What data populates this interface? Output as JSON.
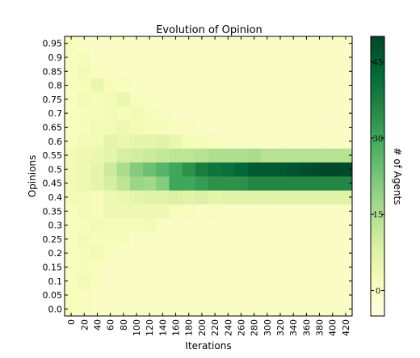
{
  "chart_data": {
    "type": "heatmap",
    "title": "Evolution of Opinion",
    "xlabel": "Iterations",
    "ylabel": "Opinions",
    "colorbar_label": "# of Agents",
    "colormap": [
      "#ffffe5",
      "#f7fcb9",
      "#d9f0a3",
      "#addd8e",
      "#78c679",
      "#41ab5d",
      "#238443",
      "#006837",
      "#004529"
    ],
    "x_ticks": [
      "0",
      "20",
      "40",
      "60",
      "80",
      "100",
      "120",
      "140",
      "160",
      "180",
      "200",
      "220",
      "240",
      "260",
      "280",
      "300",
      "320",
      "340",
      "360",
      "380",
      "400",
      "420"
    ],
    "y_ticks": [
      "0.0",
      "0.05",
      "0.1",
      "0.15",
      "0.2",
      "0.25",
      "0.3",
      "0.35",
      "0.4",
      "0.45",
      "0.5",
      "0.55",
      "0.6",
      "0.65",
      "0.7",
      "0.75",
      "0.8",
      "0.85",
      "0.9",
      "0.95"
    ],
    "colorbar_ticks": [
      {
        "label": "0",
        "value": 0
      },
      {
        "label": "15",
        "value": 15
      },
      {
        "label": "30",
        "value": 30
      },
      {
        "label": "45",
        "value": 45
      }
    ],
    "value_range": [
      -5,
      50
    ],
    "x_columns": 22,
    "y_rows": 20,
    "values": [
      [
        2,
        1,
        0,
        0,
        0,
        0,
        0,
        0,
        0,
        0,
        0,
        0,
        0,
        0,
        0,
        0,
        0,
        0,
        0,
        0,
        0,
        0
      ],
      [
        2,
        1,
        0,
        0,
        0,
        0,
        0,
        0,
        0,
        0,
        0,
        0,
        0,
        0,
        0,
        0,
        0,
        0,
        0,
        0,
        0,
        0
      ],
      [
        1,
        3,
        1,
        0,
        0,
        0,
        0,
        0,
        0,
        0,
        0,
        0,
        0,
        0,
        0,
        0,
        0,
        0,
        0,
        0,
        0,
        0
      ],
      [
        1,
        2,
        1,
        0,
        0,
        0,
        0,
        0,
        0,
        0,
        0,
        0,
        0,
        0,
        0,
        0,
        0,
        0,
        0,
        0,
        0,
        0
      ],
      [
        1,
        2,
        3,
        1,
        0,
        0,
        0,
        0,
        0,
        0,
        0,
        0,
        0,
        0,
        0,
        0,
        0,
        0,
        0,
        0,
        0,
        0
      ],
      [
        1,
        3,
        2,
        2,
        2,
        0,
        0,
        0,
        0,
        0,
        0,
        0,
        0,
        0,
        0,
        0,
        0,
        0,
        0,
        0,
        0,
        0
      ],
      [
        1,
        2,
        3,
        2,
        2,
        2,
        3,
        0,
        0,
        0,
        0,
        0,
        0,
        0,
        0,
        0,
        0,
        0,
        0,
        0,
        0,
        0
      ],
      [
        1,
        3,
        2,
        4,
        4,
        4,
        4,
        4,
        2,
        1,
        0,
        1,
        0,
        0,
        0,
        0,
        0,
        0,
        0,
        0,
        0,
        0
      ],
      [
        3,
        3,
        2,
        4,
        5,
        6,
        7,
        7,
        8,
        7,
        8,
        6,
        7,
        7,
        7,
        7,
        7,
        7,
        7,
        7,
        7,
        7
      ],
      [
        3,
        4,
        6,
        9,
        13,
        18,
        17,
        21,
        30,
        30,
        32,
        34,
        34,
        34,
        36,
        36,
        36,
        36,
        36,
        36,
        36,
        36
      ],
      [
        3,
        4,
        6,
        11,
        16,
        21,
        24,
        27,
        30,
        34,
        38,
        40,
        41,
        43,
        46,
        46,
        46,
        47,
        48,
        49,
        49,
        49
      ],
      [
        3,
        4,
        5,
        6,
        9,
        10,
        11,
        12,
        13,
        13,
        14,
        15,
        15,
        15,
        16,
        14,
        14,
        14,
        14,
        14,
        14,
        14
      ],
      [
        1,
        3,
        3,
        6,
        5,
        6,
        6,
        7,
        5,
        2,
        2,
        1,
        0,
        0,
        0,
        0,
        0,
        0,
        0,
        0,
        0,
        0
      ],
      [
        1,
        2,
        3,
        3,
        4,
        3,
        2,
        2,
        1,
        1,
        0,
        0,
        0,
        0,
        0,
        0,
        0,
        0,
        0,
        0,
        0,
        0
      ],
      [
        1,
        2,
        2,
        3,
        2,
        3,
        2,
        1,
        0,
        0,
        0,
        0,
        0,
        0,
        0,
        0,
        0,
        0,
        0,
        0,
        0,
        0
      ],
      [
        1,
        3,
        2,
        3,
        5,
        2,
        1,
        0,
        0,
        0,
        0,
        0,
        0,
        0,
        0,
        0,
        0,
        0,
        0,
        0,
        0,
        0
      ],
      [
        1,
        2,
        5,
        2,
        1,
        0,
        0,
        0,
        0,
        0,
        0,
        0,
        0,
        0,
        0,
        0,
        0,
        0,
        0,
        0,
        0,
        0
      ],
      [
        1,
        3,
        1,
        1,
        0,
        0,
        0,
        0,
        0,
        0,
        0,
        0,
        0,
        0,
        0,
        0,
        0,
        0,
        0,
        0,
        0,
        0
      ],
      [
        1,
        2,
        0,
        0,
        0,
        0,
        0,
        0,
        0,
        0,
        0,
        0,
        0,
        0,
        0,
        0,
        0,
        0,
        0,
        0,
        0,
        0
      ],
      [
        2,
        0,
        0,
        0,
        0,
        0,
        0,
        0,
        0,
        0,
        0,
        0,
        0,
        0,
        0,
        0,
        0,
        0,
        0,
        0,
        0,
        0
      ]
    ]
  }
}
